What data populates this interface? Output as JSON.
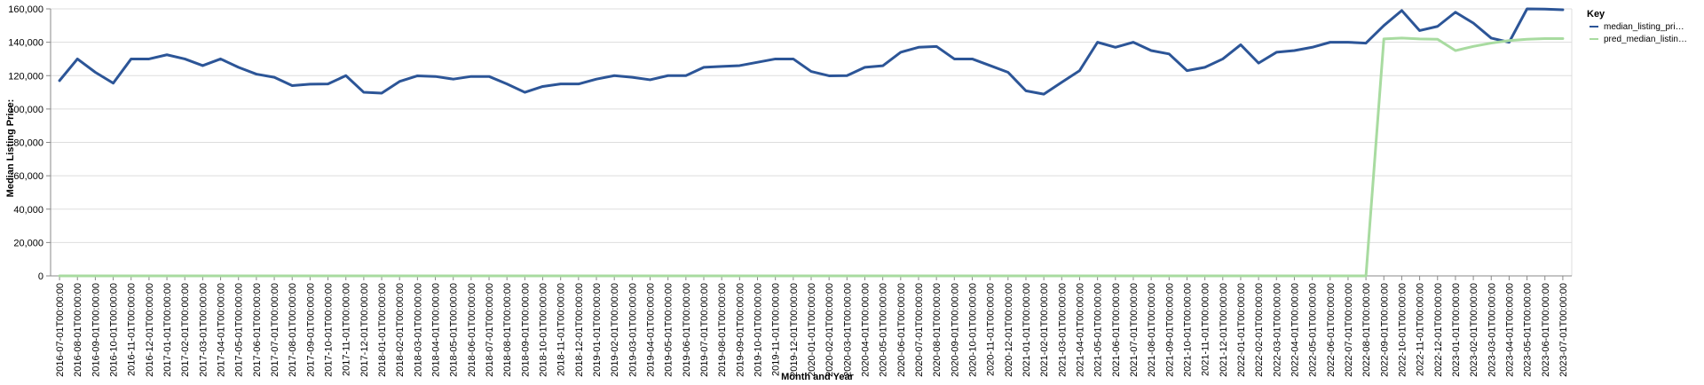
{
  "chart_data": {
    "type": "line",
    "xlabel": "Month and Year",
    "ylabel": "Median Listing Price:",
    "ylim": [
      0,
      160000
    ],
    "yticks": [
      "0",
      "20,000",
      "40,000",
      "60,000",
      "80,000",
      "100,000",
      "120,000",
      "140,000",
      "160,000"
    ],
    "ytick_values": [
      0,
      20000,
      40000,
      60000,
      80000,
      100000,
      120000,
      140000,
      160000
    ],
    "grid": true,
    "legend": {
      "title": "Key",
      "placement": "top-right"
    },
    "x": [
      "2016-07-01T00:00:00",
      "2016-08-01T00:00:00",
      "2016-09-01T00:00:00",
      "2016-10-01T00:00:00",
      "2016-11-01T00:00:00",
      "2016-12-01T00:00:00",
      "2017-01-01T00:00:00",
      "2017-02-01T00:00:00",
      "2017-03-01T00:00:00",
      "2017-04-01T00:00:00",
      "2017-05-01T00:00:00",
      "2017-06-01T00:00:00",
      "2017-07-01T00:00:00",
      "2017-08-01T00:00:00",
      "2017-09-01T00:00:00",
      "2017-10-01T00:00:00",
      "2017-11-01T00:00:00",
      "2017-12-01T00:00:00",
      "2018-01-01T00:00:00",
      "2018-02-01T00:00:00",
      "2018-03-01T00:00:00",
      "2018-04-01T00:00:00",
      "2018-05-01T00:00:00",
      "2018-06-01T00:00:00",
      "2018-07-01T00:00:00",
      "2018-08-01T00:00:00",
      "2018-09-01T00:00:00",
      "2018-10-01T00:00:00",
      "2018-11-01T00:00:00",
      "2018-12-01T00:00:00",
      "2019-01-01T00:00:00",
      "2019-02-01T00:00:00",
      "2019-03-01T00:00:00",
      "2019-04-01T00:00:00",
      "2019-05-01T00:00:00",
      "2019-06-01T00:00:00",
      "2019-07-01T00:00:00",
      "2019-08-01T00:00:00",
      "2019-09-01T00:00:00",
      "2019-10-01T00:00:00",
      "2019-11-01T00:00:00",
      "2019-12-01T00:00:00",
      "2020-01-01T00:00:00",
      "2020-02-01T00:00:00",
      "2020-03-01T00:00:00",
      "2020-04-01T00:00:00",
      "2020-05-01T00:00:00",
      "2020-06-01T00:00:00",
      "2020-07-01T00:00:00",
      "2020-08-01T00:00:00",
      "2020-09-01T00:00:00",
      "2020-10-01T00:00:00",
      "2020-11-01T00:00:00",
      "2020-12-01T00:00:00",
      "2021-01-01T00:00:00",
      "2021-02-01T00:00:00",
      "2021-03-01T00:00:00",
      "2021-04-01T00:00:00",
      "2021-05-01T00:00:00",
      "2021-06-01T00:00:00",
      "2021-07-01T00:00:00",
      "2021-08-01T00:00:00",
      "2021-09-01T00:00:00",
      "2021-10-01T00:00:00",
      "2021-11-01T00:00:00",
      "2021-12-01T00:00:00",
      "2022-01-01T00:00:00",
      "2022-02-01T00:00:00",
      "2022-03-01T00:00:00",
      "2022-04-01T00:00:00",
      "2022-05-01T00:00:00",
      "2022-06-01T00:00:00",
      "2022-07-01T00:00:00",
      "2022-08-01T00:00:00",
      "2022-09-01T00:00:00",
      "2022-10-01T00:00:00",
      "2022-11-01T00:00:00",
      "2022-12-01T00:00:00",
      "2023-01-01T00:00:00",
      "2023-02-01T00:00:00",
      "2023-03-01T00:00:00",
      "2023-04-01T00:00:00",
      "2023-05-01T00:00:00",
      "2023-06-01T00:00:00",
      "2023-07-01T00:00:00"
    ],
    "series": [
      {
        "name": "median_listing_pri…",
        "color": "#2c5597",
        "values": [
          117000,
          130000,
          122000,
          115500,
          130000,
          130000,
          132500,
          130000,
          126000,
          130000,
          125000,
          120900,
          119000,
          114000,
          114900,
          115000,
          120000,
          110000,
          109500,
          116500,
          119900,
          119500,
          117900,
          119500,
          119500,
          115000,
          110000,
          113500,
          115000,
          115000,
          117900,
          120000,
          119000,
          117500,
          120000,
          120000,
          125000,
          125500,
          126000,
          128000,
          130000,
          130000,
          122500,
          119900,
          120000,
          125000,
          125900,
          134000,
          137000,
          137500,
          130000,
          130000,
          126000,
          122000,
          110900,
          108900,
          116000,
          123000,
          140000,
          137000,
          140000,
          135000,
          133000,
          123000,
          125000,
          130000,
          138500,
          127500,
          134000,
          135000,
          137000,
          140000,
          140000,
          139500,
          150000,
          159000,
          147000,
          149500,
          158000,
          151500,
          142500,
          140000,
          160000,
          159900,
          159500
        ]
      },
      {
        "name": "pred_median_listin…",
        "color": "#a8dba0",
        "values": [
          0,
          0,
          0,
          0,
          0,
          0,
          0,
          0,
          0,
          0,
          0,
          0,
          0,
          0,
          0,
          0,
          0,
          0,
          0,
          0,
          0,
          0,
          0,
          0,
          0,
          0,
          0,
          0,
          0,
          0,
          0,
          0,
          0,
          0,
          0,
          0,
          0,
          0,
          0,
          0,
          0,
          0,
          0,
          0,
          0,
          0,
          0,
          0,
          0,
          0,
          0,
          0,
          0,
          0,
          0,
          0,
          0,
          0,
          0,
          0,
          0,
          0,
          0,
          0,
          0,
          0,
          0,
          0,
          0,
          0,
          0,
          0,
          0,
          0,
          142000,
          142500,
          142000,
          141800,
          135000,
          137500,
          139500,
          141000,
          141800,
          142200,
          142200
        ]
      }
    ]
  }
}
